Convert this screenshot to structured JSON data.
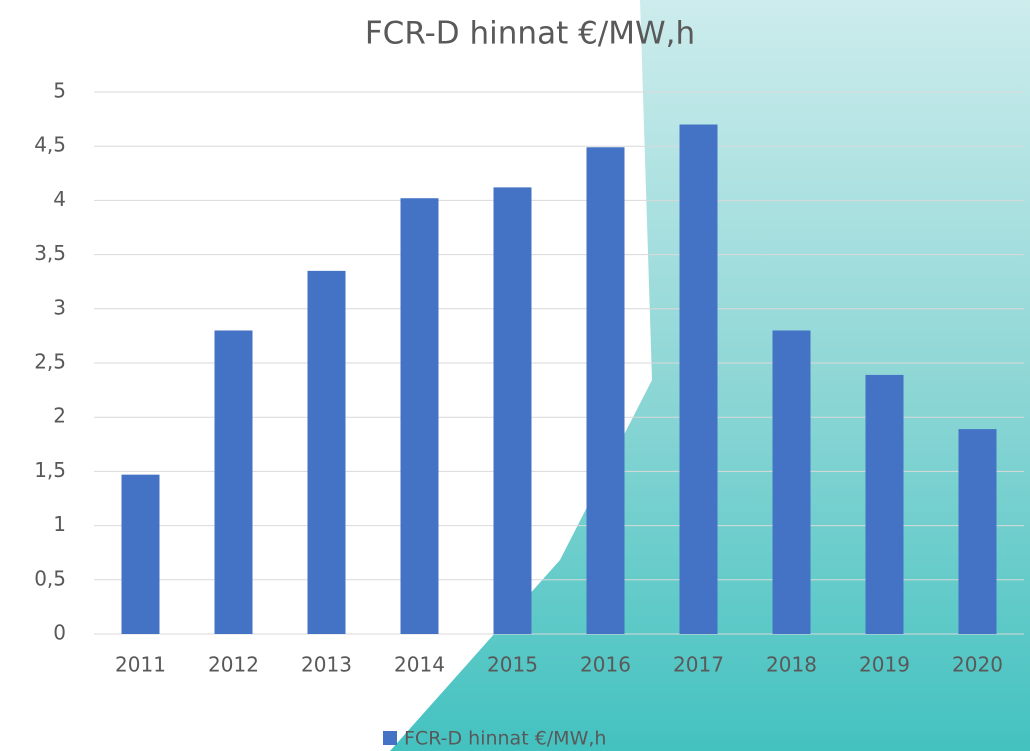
{
  "chart_data": {
    "type": "bar",
    "title": "FCR-D hinnat €/MW,h",
    "categories": [
      "2011",
      "2012",
      "2013",
      "2014",
      "2015",
      "2016",
      "2017",
      "2018",
      "2019",
      "2020"
    ],
    "series": [
      {
        "name": "FCR-D hinnat €/MW,h",
        "color": "#4472c4",
        "values": [
          1.47,
          2.8,
          3.35,
          4.02,
          4.12,
          4.49,
          4.7,
          2.8,
          2.39,
          1.89
        ]
      }
    ],
    "ylim": [
      0,
      5
    ],
    "yticks": [
      0,
      {
        "value": 0.5,
        "label": "0,5"
      },
      1,
      {
        "value": 1.5,
        "label": "1,5"
      },
      2,
      {
        "value": 2.5,
        "label": "2,5"
      },
      3,
      {
        "value": 3.5,
        "label": "3,5"
      },
      4,
      {
        "value": 4.5,
        "label": "4,5"
      },
      5
    ],
    "grid": true,
    "legend": "bottom"
  }
}
